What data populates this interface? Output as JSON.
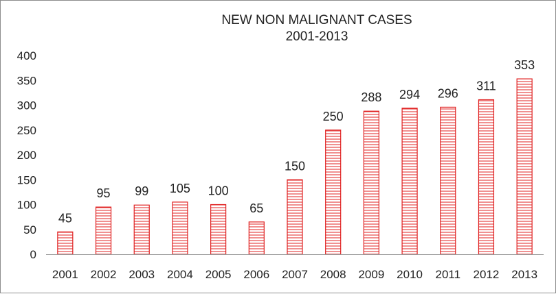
{
  "chart_data": {
    "type": "bar",
    "title": "NEW NON MALIGNANT CASES",
    "subtitle": "2001-2013",
    "xlabel": "",
    "ylabel": "",
    "categories": [
      "2001",
      "2002",
      "2003",
      "2004",
      "2005",
      "2006",
      "2007",
      "2008",
      "2009",
      "2010",
      "2011",
      "2012",
      "2013"
    ],
    "values": [
      45,
      95,
      99,
      105,
      100,
      65,
      150,
      250,
      288,
      294,
      296,
      311,
      353
    ],
    "ylim": [
      0,
      400
    ],
    "yticks": [
      "0",
      "50",
      "100",
      "150",
      "200",
      "250",
      "300",
      "350",
      "400"
    ],
    "grid": false,
    "legend": "none",
    "bar_color": "#e02020",
    "bar_pattern": "horizontal-lines"
  }
}
